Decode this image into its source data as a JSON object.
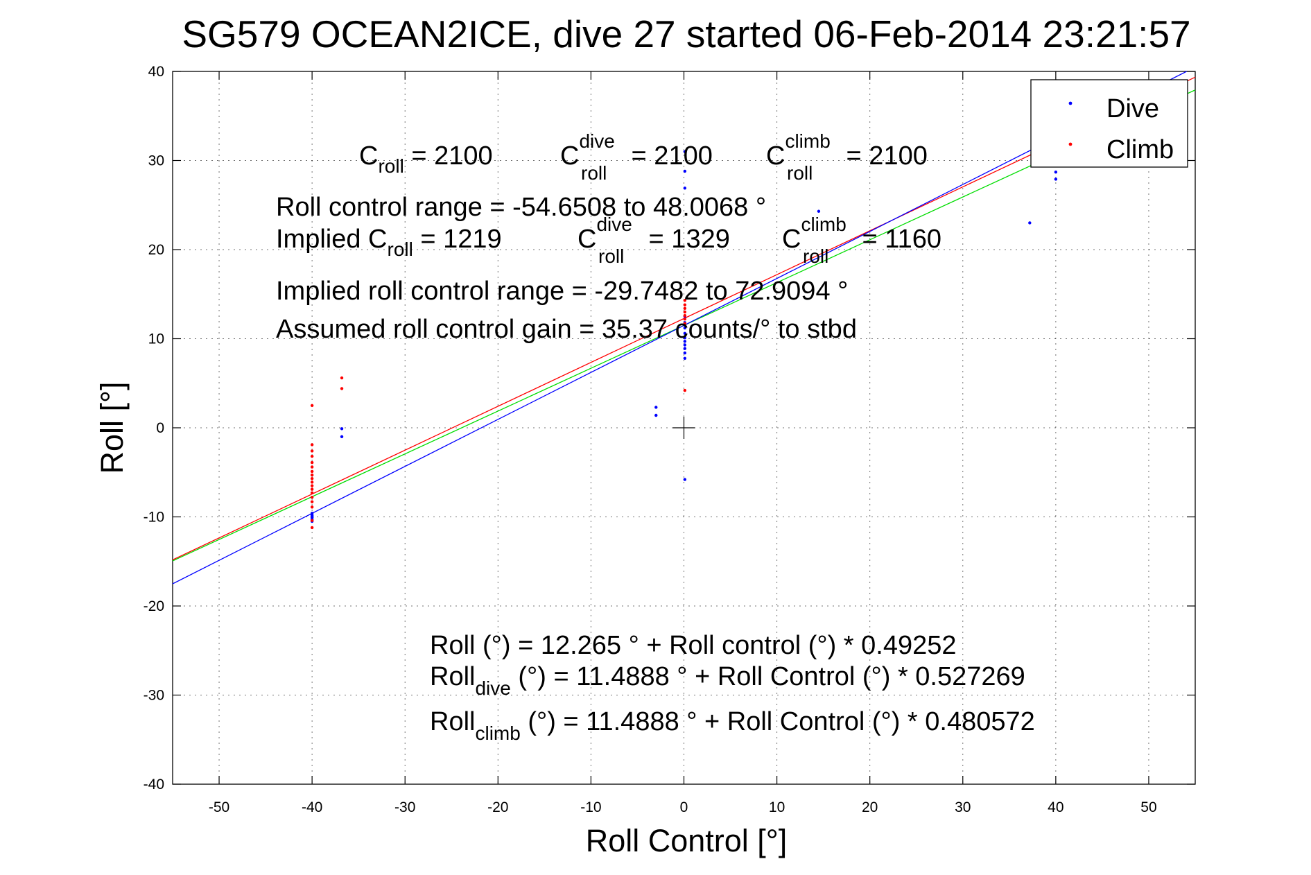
{
  "chart_data": {
    "type": "scatter",
    "title": "SG579 OCEAN2ICE, dive 27 started 06-Feb-2014 23:21:57",
    "xlabel": "Roll Control [°]",
    "ylabel": "Roll [°]",
    "xlim": [
      -55,
      55
    ],
    "ylim": [
      -40,
      40
    ],
    "xticks": [
      -50,
      -40,
      -30,
      -20,
      -10,
      0,
      10,
      20,
      30,
      40,
      50
    ],
    "yticks": [
      -40,
      -30,
      -20,
      -10,
      0,
      10,
      20,
      30,
      40
    ],
    "grid": true,
    "legend": {
      "placement": "top-right",
      "entries": [
        {
          "label": "Dive",
          "color": "#0000ff"
        },
        {
          "label": "Climb",
          "color": "#ff0000"
        }
      ]
    },
    "series": [
      {
        "name": "Dive",
        "color": "#0000ff",
        "points": [
          [
            -40,
            -9.6
          ],
          [
            -40,
            -9.9
          ],
          [
            -40,
            -10.1
          ],
          [
            -40,
            -10.3
          ],
          [
            -40,
            -10.5
          ],
          [
            -40,
            -10.0
          ],
          [
            -40,
            -9.8
          ],
          [
            -36.8,
            -0.1
          ],
          [
            -36.8,
            -1.0
          ],
          [
            -3,
            2.3
          ],
          [
            -3,
            1.4
          ],
          [
            0.1,
            31.0
          ],
          [
            0.1,
            28.8
          ],
          [
            0.1,
            26.9
          ],
          [
            0.1,
            12.5
          ],
          [
            0.1,
            11.8
          ],
          [
            0.1,
            11.2
          ],
          [
            0.1,
            10.6
          ],
          [
            0.1,
            10.1
          ],
          [
            0.1,
            9.7
          ],
          [
            0.1,
            9.3
          ],
          [
            0.1,
            8.9
          ],
          [
            0.1,
            8.4
          ],
          [
            0.1,
            7.8
          ],
          [
            0.1,
            -5.8
          ],
          [
            14.5,
            24.3
          ],
          [
            37.2,
            23.0
          ],
          [
            40,
            28.7
          ],
          [
            40,
            27.9
          ]
        ]
      },
      {
        "name": "Climb",
        "color": "#ff0000",
        "points": [
          [
            -36.8,
            5.6
          ],
          [
            -36.8,
            4.4
          ],
          [
            -40,
            2.5
          ],
          [
            -40,
            -1.9
          ],
          [
            -40,
            -2.6
          ],
          [
            -40,
            -3.2
          ],
          [
            -40,
            -3.9
          ],
          [
            -40,
            -4.4
          ],
          [
            -40,
            -4.9
          ],
          [
            -40,
            -5.3
          ],
          [
            -40,
            -5.7
          ],
          [
            -40,
            -6.1
          ],
          [
            -40,
            -6.5
          ],
          [
            -40,
            -6.9
          ],
          [
            -40,
            -7.3
          ],
          [
            -40,
            -7.8
          ],
          [
            -40,
            -8.3
          ],
          [
            -40,
            -8.9
          ],
          [
            -40,
            -10.4
          ],
          [
            -40,
            -11.2
          ],
          [
            0.1,
            14.3
          ],
          [
            0.1,
            13.8
          ],
          [
            0.1,
            13.4
          ],
          [
            0.1,
            13.0
          ],
          [
            0.1,
            12.6
          ],
          [
            0.1,
            12.2
          ],
          [
            0.1,
            11.7
          ],
          [
            0.1,
            4.2
          ]
        ]
      }
    ],
    "fits": [
      {
        "color": "#ff0000",
        "intercept": 12.265,
        "slope": 0.49252
      },
      {
        "color": "#00dd00",
        "intercept": 11.4888,
        "slope": 0.480572
      },
      {
        "color": "#0000ff",
        "intercept": 11.4888,
        "slope": 0.527269
      }
    ],
    "annotations": {
      "c_roll": {
        "base": "C",
        "sub": "roll",
        "rest": " = 2100"
      },
      "c_roll_dive": {
        "base": "C",
        "sup": "dive",
        "sub": "roll",
        "rest": " = 2100"
      },
      "c_roll_climb": {
        "base": "C",
        "sup": "climb",
        "sub": "roll",
        "rest": " = 2100"
      },
      "range_text": "Roll control range = -54.6508 to 48.0068 °",
      "implied_prefix": "Implied C",
      "implied_sub": "roll",
      "implied_rest": " = 1219",
      "implied_dive": {
        "base": "C",
        "sup": "dive",
        "sub": "roll",
        "rest": " = 1329"
      },
      "implied_climb": {
        "base": "C",
        "sup": "climb",
        "sub": "roll",
        "rest": " = 1160"
      },
      "implied_range": "Implied roll control range = -29.7482 to 72.9094 °",
      "gain_text": "Assumed roll control gain = 35.37 counts/° to stbd",
      "fit_all": "Roll (°) = 12.265 ° + Roll control (°) * 0.49252",
      "fit_dive_prefix": "Roll",
      "fit_dive_sub": "dive",
      "fit_dive_rest": " (°) = 11.4888 ° + Roll Control (°) * 0.527269",
      "fit_climb_prefix": "Roll",
      "fit_climb_sub": "climb",
      "fit_climb_rest": " (°) = 11.4888 ° + Roll Control (°) * 0.480572"
    }
  }
}
